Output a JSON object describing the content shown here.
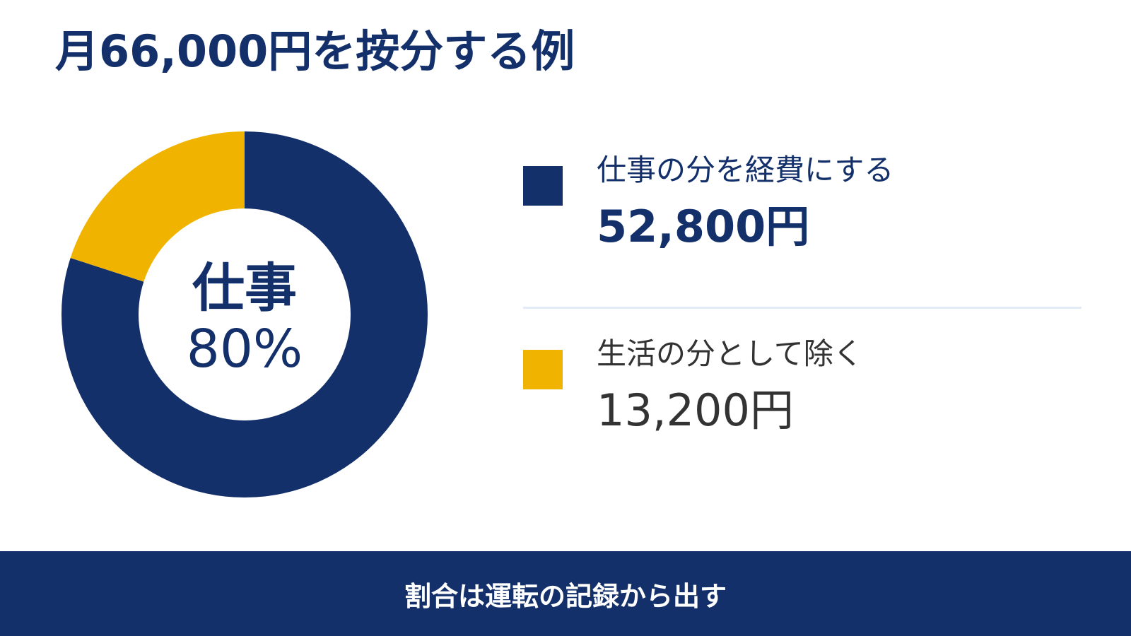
{
  "page": {
    "title": "月66,000円を按分する例",
    "footer": "割合は運転の記録から出す"
  },
  "chart_data": {
    "type": "pie",
    "total": 66000,
    "unit": "円",
    "center_label": "仕事",
    "center_value": "80%",
    "series": [
      {
        "name": "仕事",
        "value": 80,
        "color": "#14306b"
      },
      {
        "name": "生活",
        "value": 20,
        "color": "#f0b400"
      }
    ]
  },
  "legend": {
    "work": {
      "label": "仕事の分を経費にする",
      "amount": "52,800円",
      "color": "#14306b"
    },
    "life": {
      "label": "生活の分として除く",
      "amount": "13,200円",
      "color": "#f0b400"
    }
  }
}
